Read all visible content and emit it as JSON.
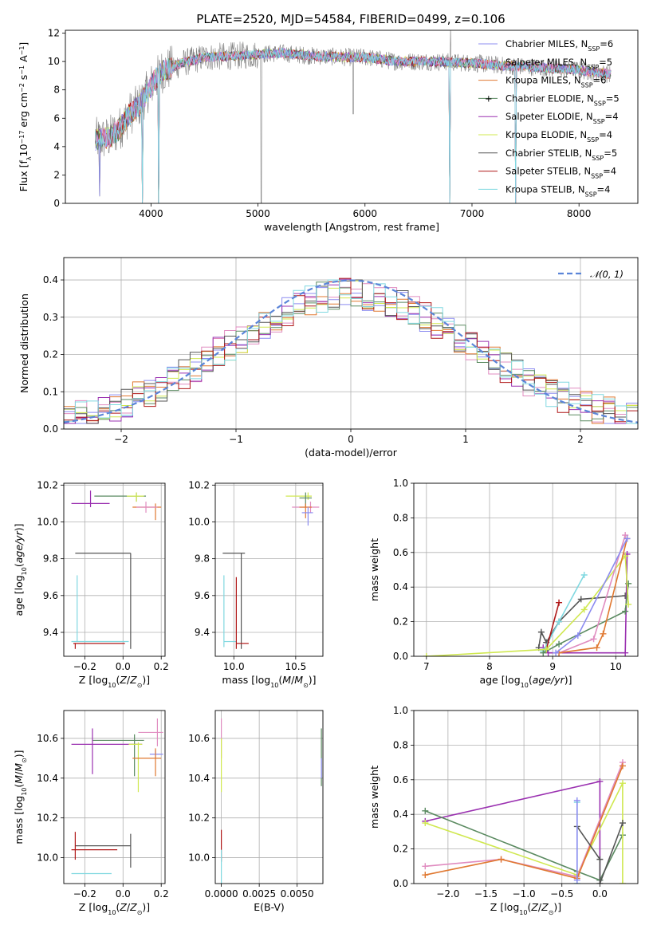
{
  "title": "PLATE=2520, MJD=54584, FIBERID=0499, z=0.106",
  "colors": {
    "chabrier_miles": "#8c8cf0",
    "salpeter_miles": "#e08cc0",
    "kroupa_miles": "#e07830",
    "chabrier_elodie": "#5a8a60",
    "salpeter_elodie": "#9a30b0",
    "kroupa_elodie": "#d0e850",
    "chabrier_stelib": "#555555",
    "salpeter_stelib": "#b01818",
    "kroupa_stelib": "#80d8e0",
    "gauss": "#5b85d8"
  },
  "chart_data": [
    {
      "id": "spectrum",
      "type": "line",
      "xlabel": "wavelength [Angstrom, rest frame]",
      "ylabel": "Flux [f_λ10^-17 erg cm^-2 s^-1 A^-1]",
      "xlim": [
        3200,
        8550
      ],
      "ylim": [
        0,
        12.2
      ],
      "xticks": [
        4000,
        5000,
        6000,
        7000,
        8000
      ],
      "yticks": [
        0,
        2,
        4,
        6,
        8,
        10,
        12
      ],
      "legend_position": "right",
      "legend": [
        {
          "label": "Chabrier MILES, N",
          "sub": "SSP",
          "n": "=6",
          "color": "chabrier_miles"
        },
        {
          "label": "Salpeter MILES, N",
          "sub": "SSP",
          "n": "=5",
          "color": "salpeter_miles"
        },
        {
          "label": "Kroupa MILES, N",
          "sub": "SSP",
          "n": "=6",
          "color": "kroupa_miles"
        },
        {
          "label": "Chabrier ELODIE, N",
          "sub": "SSP",
          "n": "=5",
          "color": "chabrier_elodie"
        },
        {
          "label": "Salpeter ELODIE, N",
          "sub": "SSP",
          "n": "=4",
          "color": "salpeter_elodie"
        },
        {
          "label": "Kroupa ELODIE, N",
          "sub": "SSP",
          "n": "=4",
          "color": "kroupa_elodie"
        },
        {
          "label": "Chabrier STELIB, N",
          "sub": "SSP",
          "n": "=5",
          "color": "chabrier_stelib"
        },
        {
          "label": "Salpeter STELIB, N",
          "sub": "SSP",
          "n": "=4",
          "color": "salpeter_stelib"
        },
        {
          "label": "Kroupa STELIB, N",
          "sub": "SSP",
          "n": "=4",
          "color": "kroupa_stelib"
        }
      ],
      "continuum": [
        [
          3480,
          4.5
        ],
        [
          3600,
          4.6
        ],
        [
          3700,
          5.2
        ],
        [
          3800,
          6.3
        ],
        [
          3900,
          7.0
        ],
        [
          4000,
          8.3
        ],
        [
          4100,
          9.3
        ],
        [
          4300,
          9.9
        ],
        [
          4500,
          10.3
        ],
        [
          4800,
          10.4
        ],
        [
          5000,
          10.5
        ],
        [
          5200,
          10.6
        ],
        [
          5500,
          10.4
        ],
        [
          5800,
          10.3
        ],
        [
          6000,
          10.3
        ],
        [
          6300,
          10.0
        ],
        [
          6600,
          10.0
        ],
        [
          7000,
          9.9
        ],
        [
          7300,
          9.7
        ],
        [
          7600,
          9.6
        ],
        [
          8000,
          9.4
        ],
        [
          8300,
          9.1
        ]
      ],
      "observed_glitches": [
        [
          4070,
          0
        ],
        [
          5030,
          0
        ],
        [
          5890,
          6.3
        ],
        [
          6800,
          12.5
        ]
      ],
      "model_drops": [
        [
          3520,
          0.5
        ],
        [
          3920,
          0
        ],
        [
          4070,
          0
        ],
        [
          6790,
          0
        ],
        [
          7410,
          0
        ]
      ]
    },
    {
      "id": "residuals",
      "type": "bar",
      "xlabel": "(data-model)/error",
      "ylabel": "Normed distribution",
      "xlim": [
        -2.5,
        2.5
      ],
      "ylim": [
        0,
        0.46
      ],
      "xticks": [
        -2,
        -1,
        0,
        1,
        2
      ],
      "yticks": [
        0.0,
        0.1,
        0.2,
        0.3,
        0.4
      ],
      "bin_width": 0.1,
      "legend": [
        {
          "label": "𝒩(0, 1)",
          "color": "gauss"
        }
      ],
      "legend_position": "top-right"
    },
    {
      "id": "age_vs_Z",
      "type": "scatter",
      "xlabel": "Z [log10(Z/Z_sun)]",
      "ylabel": "age  [log10(age/yr)]",
      "xlim": [
        -0.31,
        0.22
      ],
      "ylim": [
        9.27,
        10.21
      ],
      "xticks": [
        -0.2,
        0.0,
        0.2
      ],
      "yticks": [
        9.4,
        9.6,
        9.8,
        10.0,
        10.2
      ],
      "points": [
        {
          "x": 0.07,
          "y": 10.14,
          "xerr": [
            0.22,
            0.05
          ],
          "yerr": [
            0.03,
            0.02
          ],
          "color": "chabrier_elodie"
        },
        {
          "x": 0.07,
          "y": 10.14,
          "xerr": [
            0.05,
            0.04
          ],
          "yerr": [
            0.03,
            0.02
          ],
          "color": "kroupa_elodie"
        },
        {
          "x": -0.17,
          "y": 10.1,
          "xerr": [
            0.1,
            0.1
          ],
          "yerr": [
            0.02,
            0.07
          ],
          "color": "salpeter_elodie"
        },
        {
          "x": 0.17,
          "y": 10.08,
          "xerr": [
            0.12,
            0.03
          ],
          "yerr": [
            0.07,
            0.02
          ],
          "color": "kroupa_miles"
        },
        {
          "x": 0.12,
          "y": 10.08,
          "xerr": [
            0.05,
            0.06
          ],
          "yerr": [
            0.03,
            0.03
          ],
          "color": "salpeter_miles"
        },
        {
          "x": 0.04,
          "y": 9.83,
          "xerr": [
            0.29,
            0.0
          ],
          "yerr": [
            0.52,
            0.0
          ],
          "color": "chabrier_stelib"
        },
        {
          "x": -0.24,
          "y": 9.35,
          "xerr": [
            0.03,
            0.27
          ],
          "yerr": [
            0.0,
            0.36
          ],
          "color": "kroupa_stelib"
        },
        {
          "x": -0.25,
          "y": 9.34,
          "xerr": [
            0.01,
            0.26
          ],
          "yerr": [
            0.03,
            0.0
          ],
          "color": "salpeter_stelib"
        }
      ]
    },
    {
      "id": "age_vs_mass",
      "type": "scatter",
      "xlabel": "mass [log10(M/M_sun)]",
      "ylabel": "",
      "xlim": [
        9.85,
        10.72
      ],
      "ylim": [
        9.27,
        10.21
      ],
      "xticks": [
        10.0,
        10.5
      ],
      "yticks": [
        9.4,
        9.6,
        9.8,
        10.0,
        10.2
      ],
      "points": [
        {
          "x": 10.6,
          "y": 10.14,
          "xerr": [
            0.18,
            0.03
          ],
          "yerr": [
            0.02,
            0.02
          ],
          "color": "kroupa_elodie"
        },
        {
          "x": 10.58,
          "y": 10.13,
          "xerr": [
            0.05,
            0.05
          ],
          "yerr": [
            0.05,
            0.03
          ],
          "color": "chabrier_elodie"
        },
        {
          "x": 10.62,
          "y": 10.08,
          "xerr": [
            0.15,
            0.07
          ],
          "yerr": [
            0.03,
            0.03
          ],
          "color": "salpeter_miles"
        },
        {
          "x": 10.58,
          "y": 10.08,
          "xerr": [
            0.05,
            0.05
          ],
          "yerr": [
            0.06,
            0.02
          ],
          "color": "kroupa_miles"
        },
        {
          "x": 10.6,
          "y": 10.05,
          "xerr": [
            0.05,
            0.04
          ],
          "yerr": [
            0.07,
            0.03
          ],
          "color": "chabrier_miles"
        },
        {
          "x": 10.06,
          "y": 9.83,
          "xerr": [
            0.15,
            0.03
          ],
          "yerr": [
            0.52,
            0.0
          ],
          "color": "chabrier_stelib"
        },
        {
          "x": 9.92,
          "y": 9.35,
          "xerr": [
            0.0,
            0.1
          ],
          "yerr": [
            0.03,
            0.36
          ],
          "color": "kroupa_stelib"
        },
        {
          "x": 10.02,
          "y": 9.34,
          "xerr": [
            0.0,
            0.1
          ],
          "yerr": [
            0.03,
            0.36
          ],
          "color": "salpeter_stelib"
        }
      ]
    },
    {
      "id": "weights_vs_age",
      "type": "line",
      "xlabel": "age  [log10(age/yr)]",
      "ylabel": "mass weight",
      "xlim": [
        6.8,
        10.35
      ],
      "ylim": [
        0,
        1.0
      ],
      "xticks": [
        7,
        8,
        9,
        10
      ],
      "yticks": [
        0.0,
        0.2,
        0.4,
        0.6,
        0.8,
        1.0
      ],
      "series": [
        {
          "color": "chabrier_stelib",
          "values": [
            [
              8.78,
              0.05
            ],
            [
              8.82,
              0.14
            ],
            [
              8.9,
              0.08
            ],
            [
              9.1,
              0.2
            ],
            [
              9.45,
              0.33
            ],
            [
              10.15,
              0.35
            ]
          ]
        },
        {
          "color": "salpeter_elodie",
          "values": [
            [
              8.85,
              0.05
            ],
            [
              8.93,
              0.02
            ],
            [
              10.15,
              0.02
            ],
            [
              10.18,
              0.59
            ]
          ]
        },
        {
          "color": "kroupa_stelib",
          "values": [
            [
              8.85,
              0.03
            ],
            [
              9.1,
              0.2
            ],
            [
              9.5,
              0.47
            ]
          ]
        },
        {
          "color": "salpeter_stelib",
          "values": [
            [
              8.9,
              0.04
            ],
            [
              9.1,
              0.31
            ]
          ]
        },
        {
          "color": "chabrier_elodie",
          "values": [
            [
              8.85,
              0.02
            ],
            [
              9.1,
              0.07
            ],
            [
              10.15,
              0.26
            ],
            [
              10.2,
              0.42
            ]
          ]
        },
        {
          "color": "kroupa_elodie",
          "values": [
            [
              7.0,
              0.0
            ],
            [
              8.9,
              0.04
            ],
            [
              9.5,
              0.27
            ],
            [
              10.15,
              0.58
            ],
            [
              10.2,
              0.3
            ]
          ]
        },
        {
          "color": "salpeter_miles",
          "values": [
            [
              9.1,
              0.02
            ],
            [
              9.65,
              0.1
            ],
            [
              10.15,
              0.7
            ]
          ]
        },
        {
          "color": "kroupa_miles",
          "values": [
            [
              9.1,
              0.02
            ],
            [
              9.7,
              0.05
            ],
            [
              9.8,
              0.13
            ],
            [
              10.18,
              0.68
            ]
          ]
        },
        {
          "color": "chabrier_miles",
          "values": [
            [
              9.05,
              0.02
            ],
            [
              9.4,
              0.12
            ],
            [
              10.18,
              0.68
            ]
          ]
        }
      ]
    },
    {
      "id": "mass_vs_Z",
      "type": "scatter",
      "xlabel": "Z [log10(Z/Z_sun)]",
      "ylabel": "mass [log10(M/M_sun)]",
      "xlim": [
        -0.31,
        0.22
      ],
      "ylim": [
        9.87,
        10.74
      ],
      "xticks": [
        -0.2,
        0.0,
        0.2
      ],
      "yticks": [
        10.0,
        10.2,
        10.4,
        10.6
      ],
      "points": [
        {
          "x": 0.18,
          "y": 10.63,
          "xerr": [
            0.1,
            0.03
          ],
          "yerr": [
            0.07,
            0.07
          ],
          "color": "salpeter_miles"
        },
        {
          "x": 0.06,
          "y": 10.59,
          "xerr": [
            0.22,
            0.05
          ],
          "yerr": [
            0.18,
            0.03
          ],
          "color": "chabrier_elodie"
        },
        {
          "x": -0.16,
          "y": 10.57,
          "xerr": [
            0.11,
            0.26
          ],
          "yerr": [
            0.15,
            0.08
          ],
          "color": "salpeter_elodie"
        },
        {
          "x": 0.08,
          "y": 10.57,
          "xerr": [
            0.05,
            0.02
          ],
          "yerr": [
            0.24,
            0.01
          ],
          "color": "kroupa_elodie"
        },
        {
          "x": 0.17,
          "y": 10.52,
          "xerr": [
            0.03,
            0.04
          ],
          "yerr": [
            0.02,
            0.02
          ],
          "color": "chabrier_miles"
        },
        {
          "x": 0.17,
          "y": 10.5,
          "xerr": [
            0.12,
            0.03
          ],
          "yerr": [
            0.09,
            0.05
          ],
          "color": "kroupa_miles"
        },
        {
          "x": 0.04,
          "y": 10.06,
          "xerr": [
            0.29,
            0.0
          ],
          "yerr": [
            0.11,
            0.06
          ],
          "color": "chabrier_stelib"
        },
        {
          "x": -0.25,
          "y": 10.04,
          "xerr": [
            0.02,
            0.22
          ],
          "yerr": [
            0.05,
            0.09
          ],
          "color": "salpeter_stelib"
        },
        {
          "x": -0.24,
          "y": 9.92,
          "xerr": [
            0.03,
            0.18
          ],
          "yerr": [
            0.0,
            0.0
          ],
          "color": "kroupa_stelib"
        }
      ]
    },
    {
      "id": "mass_vs_ebv",
      "type": "scatter",
      "xlabel": "E(B-V)",
      "ylabel": "",
      "xlim": [
        -0.0004,
        0.0067
      ],
      "ylim": [
        9.87,
        10.74
      ],
      "xticks": [
        0.0,
        0.0025,
        0.005
      ],
      "xtick_labels": [
        "0.0000",
        "0.0025",
        "0.0050"
      ],
      "yticks": [
        10.0,
        10.2,
        10.4,
        10.6
      ],
      "points": [
        {
          "x": 0.0,
          "y": 10.6,
          "yerr": [
            0.1,
            0.1
          ],
          "color": "salpeter_miles"
        },
        {
          "x": 0.0,
          "y": 10.55,
          "yerr": [
            0.22,
            0.05
          ],
          "color": "kroupa_elodie"
        },
        {
          "x": 0.0,
          "y": 10.05,
          "yerr": [
            0.07,
            0.09
          ],
          "color": "salpeter_stelib"
        },
        {
          "x": 0.0,
          "y": 9.95,
          "yerr": [
            0.09,
            0.09
          ],
          "color": "kroupa_stelib"
        },
        {
          "x": 0.0066,
          "y": 10.5,
          "yerr": [
            0.14,
            0.15
          ],
          "color": "chabrier_elodie"
        },
        {
          "x": 0.0066,
          "y": 10.45,
          "yerr": [
            0.05,
            0.05
          ],
          "color": "chabrier_miles"
        }
      ]
    },
    {
      "id": "weights_vs_Z",
      "type": "line",
      "xlabel": "Z [log10(Z/Z_sun)]",
      "ylabel": "mass weight",
      "xlim": [
        -2.45,
        0.5
      ],
      "ylim": [
        0,
        1.0
      ],
      "xticks": [
        -2.0,
        -1.5,
        -1.0,
        -0.5,
        0.0
      ],
      "yticks": [
        0.0,
        0.2,
        0.4,
        0.6,
        0.8,
        1.0
      ],
      "series": [
        {
          "color": "salpeter_elodie",
          "values": [
            [
              -2.3,
              0.36
            ],
            [
              0.0,
              0.59
            ],
            [
              0.0,
              0.02
            ]
          ]
        },
        {
          "color": "chabrier_elodie",
          "values": [
            [
              -2.3,
              0.42
            ],
            [
              -0.3,
              0.07
            ],
            [
              0.0,
              0.02
            ],
            [
              0.3,
              0.28
            ]
          ]
        },
        {
          "color": "kroupa_elodie",
          "values": [
            [
              -2.3,
              0.35
            ],
            [
              -0.3,
              0.05
            ],
            [
              0.3,
              0.58
            ],
            [
              0.3,
              0.0
            ]
          ]
        },
        {
          "color": "salpeter_miles",
          "values": [
            [
              -2.3,
              0.1
            ],
            [
              -1.3,
              0.14
            ],
            [
              -0.3,
              0.04
            ],
            [
              0.3,
              0.7
            ]
          ]
        },
        {
          "color": "kroupa_miles",
          "values": [
            [
              -2.3,
              0.05
            ],
            [
              -1.3,
              0.14
            ],
            [
              -0.3,
              0.03
            ],
            [
              0.3,
              0.68
            ]
          ]
        },
        {
          "color": "chabrier_stelib",
          "values": [
            [
              -0.3,
              0.33
            ],
            [
              0.0,
              0.14
            ],
            [
              0.0,
              0.0
            ],
            [
              0.3,
              0.35
            ]
          ]
        },
        {
          "color": "kroupa_stelib",
          "values": [
            [
              -0.3,
              0.47
            ],
            [
              -0.3,
              0.0
            ]
          ]
        },
        {
          "color": "chabrier_miles",
          "values": [
            [
              -0.3,
              0.48
            ],
            [
              -0.3,
              0.02
            ]
          ]
        }
      ]
    }
  ]
}
